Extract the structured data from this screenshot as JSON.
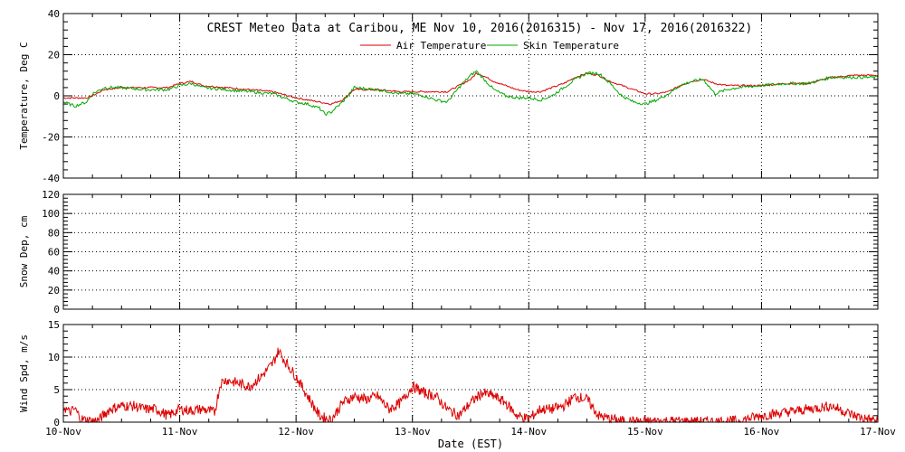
{
  "chart_data": {
    "type": "line",
    "title": "CREST Meteo Data at Caribou, ME   Nov 10, 2016(2016315) - Nov 17, 2016(2016322)",
    "xlabel": "Date (EST)",
    "x_ticks": [
      "10-Nov",
      "11-Nov",
      "12-Nov",
      "13-Nov",
      "14-Nov",
      "15-Nov",
      "16-Nov",
      "17-Nov"
    ],
    "colors": {
      "air": "#dd0000",
      "skin": "#00aa00",
      "wind": "#dd0000"
    },
    "panels": [
      {
        "id": "temperature",
        "ylabel": "Temperature, Deg C",
        "ylim": [
          -40,
          40
        ],
        "yticks": [
          -40,
          -20,
          0,
          20,
          40
        ],
        "legend": [
          "Air Temperature",
          "Skin Temperature"
        ],
        "series": [
          {
            "name": "Air Temperature",
            "x": [
              0,
              0.1,
              0.2,
              0.25,
              0.35,
              0.5,
              0.7,
              0.9,
              1.0,
              1.1,
              1.2,
              1.4,
              1.6,
              1.8,
              2.0,
              2.1,
              2.2,
              2.3,
              2.4,
              2.5,
              2.7,
              2.9,
              3.0,
              3.1,
              3.2,
              3.3,
              3.4,
              3.5,
              3.55,
              3.6,
              3.7,
              3.8,
              3.9,
              4.0,
              4.1,
              4.2,
              4.3,
              4.4,
              4.5,
              4.6,
              4.7,
              4.8,
              4.9,
              5.0,
              5.1,
              5.2,
              5.3,
              5.4,
              5.5,
              5.6,
              5.7,
              5.8,
              6.0,
              6.2,
              6.4,
              6.6,
              6.8,
              7.0
            ],
            "y": [
              -1,
              -1,
              -1,
              0,
              3,
              4,
              4,
              4,
              6,
              7,
              5,
              4,
              3,
              2,
              -1,
              -2,
              -3,
              -4,
              -2,
              3,
              3,
              2,
              2,
              2,
              2,
              2,
              5,
              8,
              11,
              10,
              7,
              5,
              3,
              2,
              2,
              4,
              6,
              9,
              11,
              10,
              7,
              5,
              3,
              1,
              1,
              2,
              5,
              7,
              8,
              6,
              5,
              5,
              5,
              6,
              6,
              9,
              10,
              10
            ]
          },
          {
            "name": "Skin Temperature",
            "x": [
              0,
              0.05,
              0.1,
              0.2,
              0.25,
              0.35,
              0.5,
              0.7,
              0.9,
              1.0,
              1.1,
              1.2,
              1.4,
              1.6,
              1.8,
              2.0,
              2.1,
              2.2,
              2.25,
              2.3,
              2.4,
              2.5,
              2.7,
              2.9,
              3.0,
              3.1,
              3.2,
              3.3,
              3.4,
              3.5,
              3.55,
              3.6,
              3.7,
              3.8,
              3.9,
              4.0,
              4.1,
              4.2,
              4.3,
              4.4,
              4.5,
              4.6,
              4.7,
              4.8,
              4.9,
              5.0,
              5.1,
              5.2,
              5.3,
              5.4,
              5.5,
              5.6,
              5.7,
              5.8,
              6.0,
              6.2,
              6.4,
              6.6,
              6.8,
              7.0
            ],
            "y": [
              -3,
              -4,
              -5,
              -3,
              1,
              4,
              4,
              3,
              3,
              5,
              6,
              4,
              3,
              2,
              1,
              -3,
              -4,
              -6,
              -9,
              -8,
              -3,
              4,
              3,
              1,
              1,
              0,
              -2,
              -3,
              4,
              10,
              12,
              9,
              3,
              0,
              -1,
              -1,
              -2,
              0,
              4,
              8,
              11,
              11,
              6,
              0,
              -3,
              -4,
              -2,
              1,
              5,
              7,
              8,
              1,
              3,
              4,
              5,
              6,
              6,
              9,
              9,
              9
            ]
          }
        ]
      },
      {
        "id": "snow",
        "ylabel": "Snow Dep, cm",
        "ylim": [
          0,
          120
        ],
        "yticks": [
          0,
          20,
          40,
          60,
          80,
          100,
          120
        ],
        "series": []
      },
      {
        "id": "wind",
        "ylabel": "Wind Spd, m/s",
        "ylim": [
          0,
          15
        ],
        "yticks": [
          0,
          5,
          10,
          15
        ],
        "series": [
          {
            "name": "Wind Speed",
            "x": [
              0,
              0.05,
              0.1,
              0.15,
              0.2,
              0.25,
              0.3,
              0.4,
              0.5,
              0.6,
              0.7,
              0.8,
              0.9,
              1.0,
              1.1,
              1.2,
              1.3,
              1.35,
              1.4,
              1.5,
              1.6,
              1.7,
              1.8,
              1.85,
              1.9,
              2.0,
              2.1,
              2.2,
              2.3,
              2.4,
              2.5,
              2.6,
              2.7,
              2.8,
              2.9,
              3.0,
              3.1,
              3.2,
              3.3,
              3.4,
              3.5,
              3.6,
              3.7,
              3.8,
              3.9,
              4.0,
              4.1,
              4.2,
              4.3,
              4.4,
              4.5,
              4.6,
              4.7,
              4.8,
              4.9,
              5.0,
              5.2,
              5.4,
              5.6,
              5.8,
              6.0,
              6.2,
              6.4,
              6.6,
              6.8,
              6.9,
              7.0
            ],
            "y": [
              2.5,
              1.5,
              2,
              0.5,
              0.3,
              0.2,
              0.3,
              2,
              2.5,
              2.5,
              2,
              2,
              1,
              2,
              1.8,
              2,
              1.5,
              6,
              6.5,
              6,
              5.5,
              7,
              9,
              11,
              9.5,
              7,
              4,
              1,
              0.3,
              3,
              4,
              3.5,
              4,
              2,
              3,
              5.5,
              4.5,
              4,
              2,
              1,
              3,
              4.5,
              4,
              3,
              1,
              0.5,
              2,
              2,
              2.5,
              4,
              3.5,
              1,
              0.5,
              0.2,
              0.1,
              0.1,
              0.2,
              0.1,
              0.1,
              0.2,
              1,
              1.5,
              2,
              2.5,
              1,
              0.5,
              0.2
            ]
          }
        ]
      }
    ]
  }
}
